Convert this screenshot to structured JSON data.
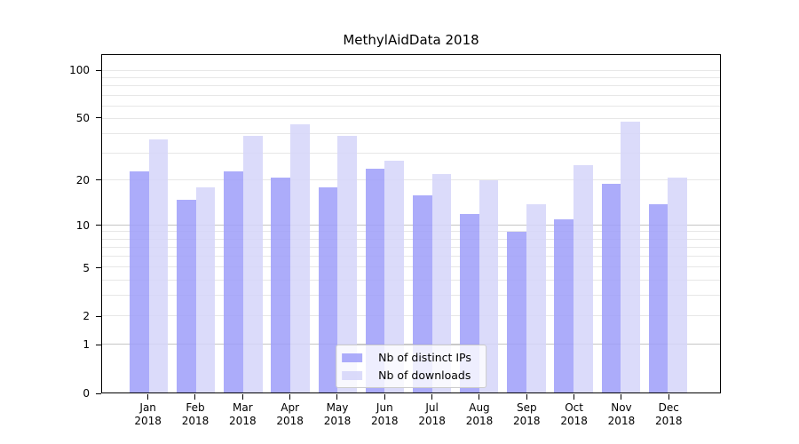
{
  "chart_data": {
    "type": "bar",
    "title": "MethylAidData 2018",
    "categories": [
      "Jan",
      "Feb",
      "Mar",
      "Apr",
      "May",
      "Jun",
      "Jul",
      "Aug",
      "Sep",
      "Oct",
      "Nov",
      "Dec"
    ],
    "category_year": "2018",
    "series": [
      {
        "name": "Nb of distinct IPs",
        "color": "#9d9df9",
        "values": [
          23,
          15,
          23,
          21,
          18,
          24,
          16,
          12,
          9,
          11,
          19,
          14
        ]
      },
      {
        "name": "Nb of downloads",
        "color": "#d5d5f9",
        "values": [
          37,
          18,
          39,
          46,
          39,
          27,
          22,
          20,
          14,
          25,
          48,
          21
        ]
      }
    ],
    "xlabel": "",
    "ylabel": "",
    "yscale": "log1p",
    "ylim": [
      0,
      126
    ],
    "yticks": [
      0,
      1,
      2,
      5,
      10,
      20,
      50,
      100
    ],
    "grid_minor": [
      2,
      3,
      4,
      5,
      6,
      7,
      8,
      9,
      20,
      30,
      40,
      50,
      60,
      70,
      80,
      90,
      100
    ],
    "grid_major": [
      1,
      10
    ],
    "grid_on": true,
    "legend_position": "bottom-center"
  },
  "colors": {
    "grid_minor": "#e7e7e7",
    "grid_major": "#c6c6c6",
    "spine": "#000000",
    "legend_border": "#cccccc"
  }
}
